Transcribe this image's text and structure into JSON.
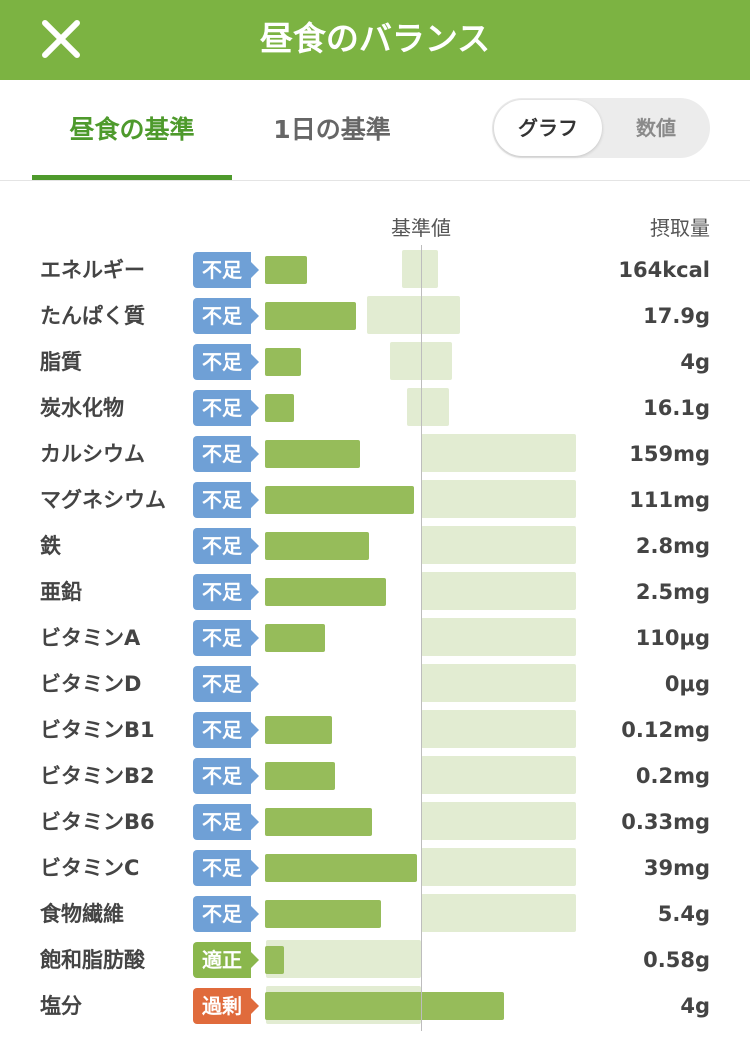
{
  "header": {
    "title": "昼食のバランス",
    "close_icon": "close-icon"
  },
  "tabs": [
    {
      "label": "昼食の基準",
      "active": true
    },
    {
      "label": "1日の基準",
      "active": false
    }
  ],
  "view_toggle": {
    "graph_label": "グラフ",
    "value_label": "数値",
    "selected": "グラフ"
  },
  "table": {
    "reference_header": "基準値",
    "intake_header": "摂取量",
    "colors": {
      "short": "#6fa0d6",
      "ok": "#8ab74c",
      "over": "#e06b3c",
      "intake_bar": "#96bc5a",
      "reference_bar": "#e2ecd2"
    },
    "rows": [
      {
        "name": "エネルギー",
        "status": "不足",
        "level": "short",
        "intake": "164kcal",
        "intake_ratio": 0.27,
        "ref_range": [
          -0.12,
          0.11
        ]
      },
      {
        "name": "たんぱく質",
        "status": "不足",
        "level": "short",
        "intake": "17.9g",
        "intake_ratio": 0.59,
        "ref_range": [
          -0.35,
          0.25
        ]
      },
      {
        "name": "脂質",
        "status": "不足",
        "level": "short",
        "intake": "4g",
        "intake_ratio": 0.23,
        "ref_range": [
          -0.2,
          0.2
        ]
      },
      {
        "name": "炭水化物",
        "status": "不足",
        "level": "short",
        "intake": "16.1g",
        "intake_ratio": 0.19,
        "ref_range": [
          -0.09,
          0.18
        ]
      },
      {
        "name": "カルシウム",
        "status": "不足",
        "level": "short",
        "intake": "159mg",
        "intake_ratio": 0.61,
        "ref_range": [
          0,
          1
        ]
      },
      {
        "name": "マグネシウム",
        "status": "不足",
        "level": "short",
        "intake": "111mg",
        "intake_ratio": 0.96,
        "ref_range": [
          0,
          1
        ]
      },
      {
        "name": "鉄",
        "status": "不足",
        "level": "short",
        "intake": "2.8mg",
        "intake_ratio": 0.67,
        "ref_range": [
          0,
          1
        ]
      },
      {
        "name": "亜鉛",
        "status": "不足",
        "level": "short",
        "intake": "2.5mg",
        "intake_ratio": 0.78,
        "ref_range": [
          0,
          1
        ]
      },
      {
        "name": "ビタミンA",
        "status": "不足",
        "level": "short",
        "intake": "110μg",
        "intake_ratio": 0.39,
        "ref_range": [
          0,
          1
        ]
      },
      {
        "name": "ビタミンD",
        "status": "不足",
        "level": "short",
        "intake": "0μg",
        "intake_ratio": 0,
        "ref_range": [
          0,
          1
        ]
      },
      {
        "name": "ビタミンB1",
        "status": "不足",
        "level": "short",
        "intake": "0.12mg",
        "intake_ratio": 0.43,
        "ref_range": [
          0,
          1
        ]
      },
      {
        "name": "ビタミンB2",
        "status": "不足",
        "level": "short",
        "intake": "0.2mg",
        "intake_ratio": 0.45,
        "ref_range": [
          0,
          1
        ]
      },
      {
        "name": "ビタミンB6",
        "status": "不足",
        "level": "short",
        "intake": "0.33mg",
        "intake_ratio": 0.69,
        "ref_range": [
          0,
          1
        ]
      },
      {
        "name": "ビタミンC",
        "status": "不足",
        "level": "short",
        "intake": "39mg",
        "intake_ratio": 0.98,
        "ref_range": [
          0,
          1
        ]
      },
      {
        "name": "食物繊維",
        "status": "不足",
        "level": "short",
        "intake": "5.4g",
        "intake_ratio": 0.75,
        "ref_range": [
          0,
          1
        ]
      },
      {
        "name": "飽和脂肪酸",
        "status": "適正",
        "level": "ok",
        "intake": "0.58g",
        "intake_ratio": 0.12,
        "ref_range": [
          -1,
          0
        ]
      },
      {
        "name": "塩分",
        "status": "過剰",
        "level": "over",
        "intake": "4g",
        "intake_ratio": 1.54,
        "ref_range": [
          -1,
          0
        ]
      }
    ]
  }
}
